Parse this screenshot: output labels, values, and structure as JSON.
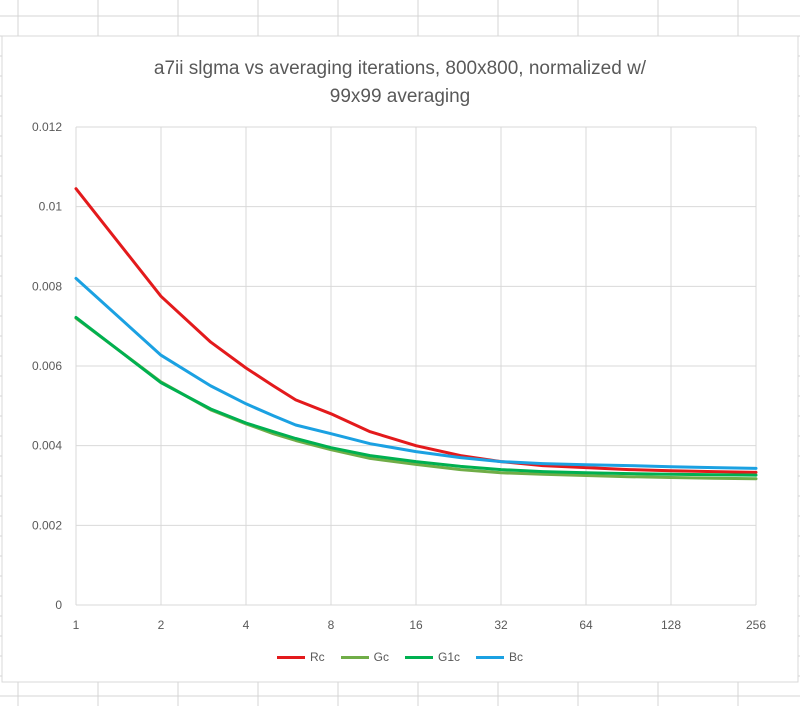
{
  "chart_data": {
    "type": "line",
    "title_line1": "a7ii slgma vs averaging iterations, 800x800, normalized w/",
    "title_line2": "99x99 averaging",
    "x_scale": "log2",
    "x_ticks": [
      "1",
      "2",
      "4",
      "8",
      "16",
      "32",
      "64",
      "128",
      "256"
    ],
    "y_ticks": [
      "0",
      "0.002",
      "0.004",
      "0.006",
      "0.008",
      "0.01",
      "0.012"
    ],
    "ylim": [
      0,
      0.012
    ],
    "xlim": [
      1,
      256
    ],
    "grid": "both",
    "legend_position": "bottom",
    "x": [
      1,
      2,
      3,
      4,
      5,
      6,
      8,
      11,
      16,
      23,
      32,
      45,
      64,
      91,
      128,
      181,
      256
    ],
    "series": [
      {
        "name": "Rc",
        "color": "#e31a1c",
        "values": [
          0.01045,
          0.00775,
          0.0066,
          0.00595,
          0.0055,
          0.00515,
          0.0048,
          0.00435,
          0.004,
          0.00375,
          0.0036,
          0.0035,
          0.00345,
          0.0034,
          0.00337,
          0.00335,
          0.00333
        ]
      },
      {
        "name": "Gc",
        "color": "#70ad47",
        "values": [
          0.0072,
          0.0056,
          0.0049,
          0.00455,
          0.0043,
          0.00413,
          0.0039,
          0.00368,
          0.00353,
          0.0034,
          0.00332,
          0.00328,
          0.00325,
          0.00322,
          0.0032,
          0.00318,
          0.00317
        ]
      },
      {
        "name": "G1c",
        "color": "#00b050",
        "values": [
          0.00722,
          0.00558,
          0.00492,
          0.00457,
          0.00435,
          0.00418,
          0.00395,
          0.00375,
          0.0036,
          0.00348,
          0.0034,
          0.00335,
          0.00332,
          0.0033,
          0.00328,
          0.00327,
          0.00326
        ]
      },
      {
        "name": "Bc",
        "color": "#1ba1e2",
        "values": [
          0.0082,
          0.00627,
          0.0055,
          0.00505,
          0.00475,
          0.00452,
          0.0043,
          0.00405,
          0.00385,
          0.0037,
          0.0036,
          0.00355,
          0.00352,
          0.0035,
          0.00347,
          0.00345,
          0.00343
        ]
      }
    ]
  }
}
